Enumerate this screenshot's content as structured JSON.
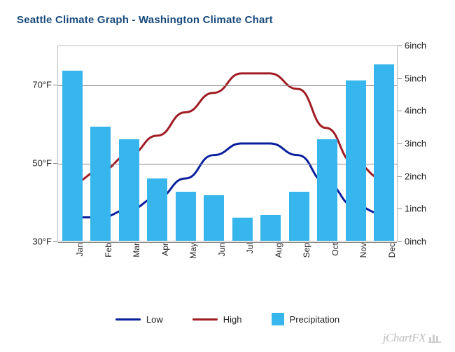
{
  "title": "Seattle Climate Graph - Washington Climate Chart",
  "chart": {
    "type": "combo-bar-line",
    "background_color": "#ffffff",
    "grid_color": "#888888",
    "plot_border_color": "#bbbbbb",
    "months": [
      "Jan",
      "Feb",
      "Mar",
      "Apr",
      "May",
      "Jun",
      "Jul",
      "Aug",
      "Sep",
      "Oct",
      "Nov",
      "Dec"
    ],
    "precipitation_in": [
      5.2,
      3.5,
      3.1,
      1.9,
      1.5,
      1.4,
      0.7,
      0.8,
      1.5,
      3.1,
      4.9,
      5.4
    ],
    "high_f": [
      45,
      48,
      52,
      57,
      63,
      68,
      73,
      73,
      69,
      59,
      50,
      46
    ],
    "low_f": [
      36,
      36,
      38,
      41,
      46,
      52,
      55,
      55,
      52,
      45,
      39,
      37
    ],
    "bar_color": "#37b6ed",
    "bar_width_ratio": 0.72,
    "low_line": {
      "color": "#0a1f9e",
      "width": 3
    },
    "high_line": {
      "color": "#a01c24",
      "width": 3
    },
    "left_axis": {
      "label_suffix": "°F",
      "ticks": [
        30,
        50,
        70
      ],
      "min": 30,
      "max": 80
    },
    "right_axis": {
      "label_suffix": "inch",
      "ticks": [
        0,
        1,
        2,
        3,
        4,
        5,
        6
      ],
      "min": 0,
      "max": 6
    },
    "xlabel_fontsize": 12,
    "ylabel_fontsize": 13,
    "xlabel_rotation_deg": -90
  },
  "legend": {
    "items": [
      {
        "kind": "line",
        "label": "Low",
        "color": "#0a1f9e"
      },
      {
        "kind": "line",
        "label": "High",
        "color": "#a01c24"
      },
      {
        "kind": "box",
        "label": "Precipitation",
        "color": "#37b6ed"
      }
    ]
  },
  "brand": "jChartFX"
}
